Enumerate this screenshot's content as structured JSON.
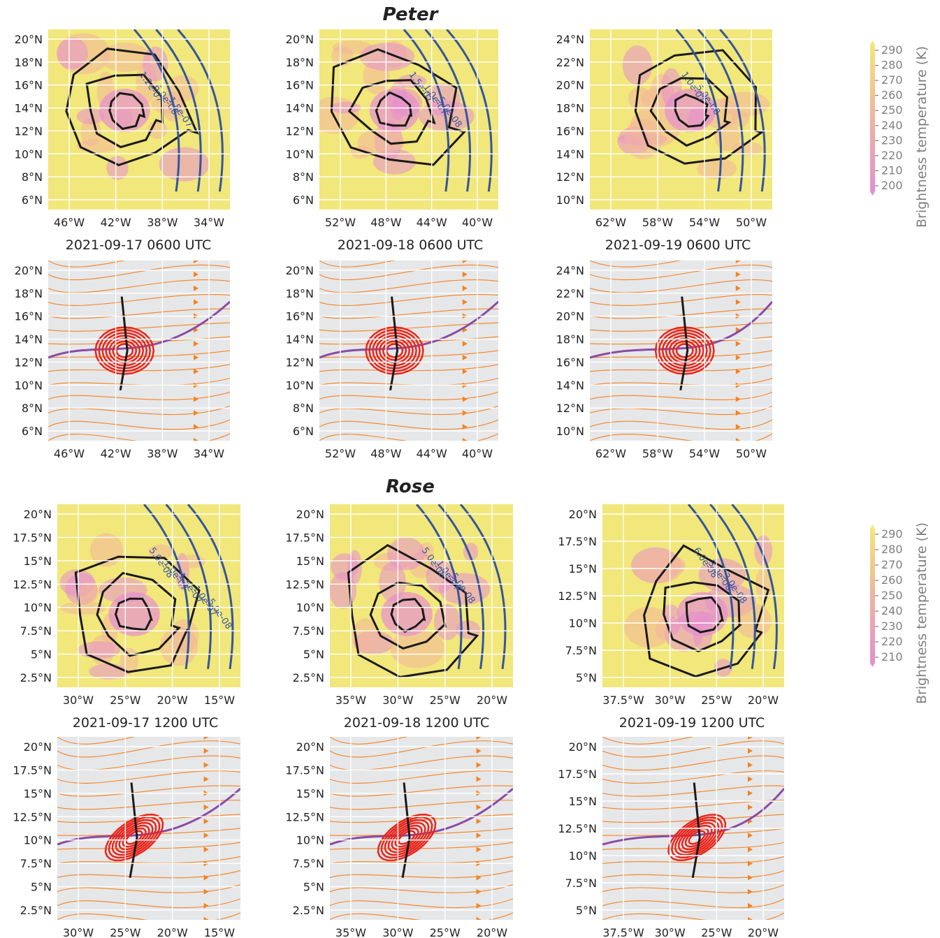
{
  "colormap": {
    "cold": "#e58fcf",
    "mid": "#f2b79a",
    "warm": "#f1e77a"
  },
  "colors": {
    "background_plain": "#e6e7e9",
    "grid": "#ffffff",
    "contour_black": "#1a1a1a",
    "contour_blue": "#34569c",
    "streamline": "#f5831f",
    "vorticity_red": "#e8251a",
    "purple_line": "#8a4ba6"
  },
  "groups": [
    {
      "name": "Peter",
      "colorbar": {
        "label": "Brightness temperature (K)",
        "ticks": [
          "290",
          "280",
          "270",
          "260",
          "250",
          "240",
          "230",
          "220",
          "210",
          "200"
        ]
      },
      "panels": [
        {
          "kind": "brightness",
          "lat_ticks": [
            "20°N",
            "18°N",
            "16°N",
            "14°N",
            "12°N",
            "10°N",
            "8°N",
            "6°N"
          ],
          "lon_ticks": [
            "46°W",
            "42°W",
            "38°W",
            "34°W"
          ],
          "contour_labels": [
            "1.2e-07",
            "6.0e-08",
            "1.8e-07"
          ]
        },
        {
          "kind": "brightness",
          "lat_ticks": [
            "20°N",
            "18°N",
            "16°N",
            "14°N",
            "12°N",
            "10°N",
            "8°N",
            "6°N"
          ],
          "lon_ticks": [
            "52°W",
            "48°W",
            "44°W",
            "40°W"
          ],
          "contour_labels": [
            "1.5e-07",
            "1.0e-07",
            "5.0e-08"
          ]
        },
        {
          "kind": "brightness",
          "lat_ticks": [
            "24°N",
            "22°N",
            "20°N",
            "18°N",
            "16°N",
            "14°N",
            "12°N",
            "10°N"
          ],
          "lon_ticks": [
            "62°W",
            "58°W",
            "54°W",
            "50°W"
          ],
          "contour_labels": [
            "1.0e-07",
            "5.0e-08"
          ]
        },
        {
          "kind": "streamline",
          "title": "2021-09-17 0600 UTC",
          "lat_ticks": [
            "20°N",
            "18°N",
            "16°N",
            "14°N",
            "12°N",
            "10°N",
            "8°N",
            "6°N"
          ],
          "lon_ticks": [
            "46°W",
            "42°W",
            "38°W",
            "34°W"
          ]
        },
        {
          "kind": "streamline",
          "title": "2021-09-18 0600 UTC",
          "lat_ticks": [
            "20°N",
            "18°N",
            "16°N",
            "14°N",
            "12°N",
            "10°N",
            "8°N",
            "6°N"
          ],
          "lon_ticks": [
            "52°W",
            "48°W",
            "44°W",
            "40°W"
          ]
        },
        {
          "kind": "streamline",
          "title": "2021-09-19 0600 UTC",
          "lat_ticks": [
            "24°N",
            "22°N",
            "20°N",
            "18°N",
            "16°N",
            "14°N",
            "12°N",
            "10°N"
          ],
          "lon_ticks": [
            "62°W",
            "58°W",
            "54°W",
            "50°W"
          ]
        }
      ]
    },
    {
      "name": "Rose",
      "colorbar": {
        "label": "Brightness temperature (K)",
        "ticks": [
          "290",
          "280",
          "270",
          "260",
          "250",
          "240",
          "230",
          "220",
          "210"
        ]
      },
      "panels": [
        {
          "kind": "brightness",
          "lat_ticks": [
            "20°N",
            "17.5°N",
            "15°N",
            "12.5°N",
            "10°N",
            "7.5°N",
            "5°N",
            "2.5°N"
          ],
          "lon_ticks": [
            "30°W",
            "25°W",
            "20°W",
            "15°W"
          ],
          "contour_labels": [
            "5.0e-08",
            "1.0e-07",
            "1.5e-07",
            "1.0e-07",
            "5.0e-08"
          ]
        },
        {
          "kind": "brightness",
          "lat_ticks": [
            "20°N",
            "17.5°N",
            "15°N",
            "12.5°N",
            "10°N",
            "7.5°N",
            "5°N",
            "2.5°N"
          ],
          "lon_ticks": [
            "35°W",
            "30°W",
            "25°W",
            "20°W"
          ],
          "contour_labels": [
            "5.0e-08",
            "1.0e-07",
            "5.0e-08"
          ]
        },
        {
          "kind": "brightness",
          "lat_ticks": [
            "20°N",
            "17.5°N",
            "15°N",
            "12.5°N",
            "10°N",
            "7.5°N",
            "5°N"
          ],
          "lon_ticks": [
            "37.5°W",
            "30°W",
            "25°W",
            "20°W"
          ],
          "contour_labels": [
            "6.0e-08",
            "3.0e-08",
            "3.0e-08"
          ]
        },
        {
          "kind": "streamline",
          "title": "2021-09-17 1200 UTC",
          "lat_ticks": [
            "20°N",
            "17.5°N",
            "15°N",
            "12.5°N",
            "10°N",
            "7.5°N",
            "5°N",
            "2.5°N"
          ],
          "lon_ticks": [
            "30°W",
            "25°W",
            "20°W",
            "15°W"
          ]
        },
        {
          "kind": "streamline",
          "title": "2021-09-18 1200 UTC",
          "lat_ticks": [
            "20°N",
            "17.5°N",
            "15°N",
            "12.5°N",
            "10°N",
            "7.5°N",
            "5°N",
            "2.5°N"
          ],
          "lon_ticks": [
            "35°W",
            "30°W",
            "25°W",
            "20°W"
          ]
        },
        {
          "kind": "streamline",
          "title": "2021-09-19 1200 UTC",
          "lat_ticks": [
            "20°N",
            "17.5°N",
            "15°N",
            "12.5°N",
            "10°N",
            "7.5°N",
            "5°N"
          ],
          "lon_ticks": [
            "37.5°W",
            "30°W",
            "25°W",
            "20°W"
          ]
        }
      ]
    }
  ]
}
